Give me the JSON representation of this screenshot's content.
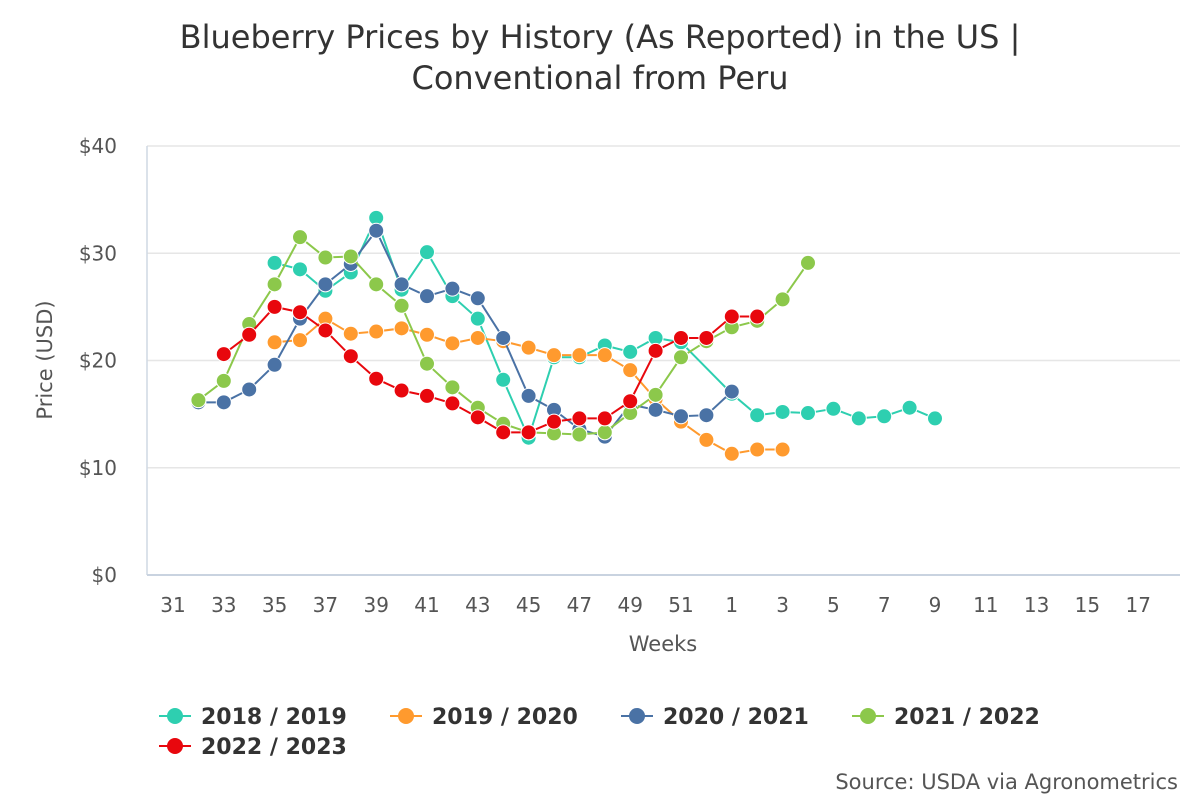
{
  "chart_data": {
    "type": "line",
    "title_lines": [
      "Blueberry Prices by History (As Reported) in the US |",
      "Conventional from Peru"
    ],
    "xlabel": "Weeks",
    "ylabel": "Price (USD)",
    "ylim": [
      0,
      40
    ],
    "yticks": [
      0,
      10,
      20,
      30,
      40
    ],
    "ytick_labels": [
      "$0",
      "$10",
      "$20",
      "$30",
      "$40"
    ],
    "x_positions": [
      "31",
      "32",
      "33",
      "34",
      "35",
      "36",
      "37",
      "38",
      "39",
      "40",
      "41",
      "42",
      "43",
      "44",
      "45",
      "46",
      "47",
      "48",
      "49",
      "50",
      "51",
      "52",
      "1",
      "2",
      "3",
      "4",
      "5",
      "6",
      "7",
      "8",
      "9",
      "10",
      "11",
      "12",
      "13",
      "14",
      "15",
      "16",
      "17"
    ],
    "xtick_labels": [
      "31",
      "33",
      "35",
      "37",
      "39",
      "41",
      "43",
      "45",
      "47",
      "49",
      "51",
      "1",
      "3",
      "5",
      "7",
      "9",
      "11",
      "13",
      "15",
      "17"
    ],
    "grid": true,
    "legend_position": "bottom-left",
    "source": "Source: USDA via Agronometrics",
    "series": [
      {
        "name": "2018 / 2019",
        "color": "#2ecfb0",
        "points": [
          [
            "35",
            29.1
          ],
          [
            "36",
            28.5
          ],
          [
            "37",
            26.5
          ],
          [
            "38",
            28.2
          ],
          [
            "39",
            33.3
          ],
          [
            "40",
            26.6
          ],
          [
            "41",
            30.1
          ],
          [
            "42",
            26.0
          ],
          [
            "43",
            23.9
          ],
          [
            "44",
            18.2
          ],
          [
            "45",
            12.8
          ],
          [
            "46",
            20.3
          ],
          [
            "47",
            20.3
          ],
          [
            "48",
            21.4
          ],
          [
            "49",
            20.8
          ],
          [
            "50",
            22.1
          ],
          [
            "51",
            21.7
          ],
          [
            "1",
            16.9
          ],
          [
            "2",
            14.9
          ],
          [
            "3",
            15.2
          ],
          [
            "4",
            15.1
          ],
          [
            "5",
            15.5
          ],
          [
            "6",
            14.6
          ],
          [
            "7",
            14.8
          ],
          [
            "8",
            15.6
          ],
          [
            "9",
            14.6
          ]
        ]
      },
      {
        "name": "2019 / 2020",
        "color": "#ff9a2e",
        "points": [
          [
            "35",
            21.7
          ],
          [
            "36",
            21.9
          ],
          [
            "37",
            23.9
          ],
          [
            "38",
            22.5
          ],
          [
            "39",
            22.7
          ],
          [
            "40",
            23.0
          ],
          [
            "41",
            22.4
          ],
          [
            "42",
            21.6
          ],
          [
            "43",
            22.1
          ],
          [
            "44",
            21.8
          ],
          [
            "45",
            21.2
          ],
          [
            "46",
            20.5
          ],
          [
            "47",
            20.5
          ],
          [
            "48",
            20.5
          ],
          [
            "49",
            19.1
          ],
          [
            "50",
            16.4
          ],
          [
            "51",
            14.3
          ],
          [
            "52",
            12.6
          ],
          [
            "1",
            11.3
          ],
          [
            "2",
            11.7
          ],
          [
            "3",
            11.7
          ]
        ]
      },
      {
        "name": "2020 / 2021",
        "color": "#4a72a5",
        "points": [
          [
            "32",
            16.1
          ],
          [
            "33",
            16.1
          ],
          [
            "34",
            17.3
          ],
          [
            "35",
            19.6
          ],
          [
            "36",
            23.9
          ],
          [
            "37",
            27.1
          ],
          [
            "38",
            29.0
          ],
          [
            "39",
            32.1
          ],
          [
            "40",
            27.1
          ],
          [
            "41",
            26.0
          ],
          [
            "42",
            26.7
          ],
          [
            "43",
            25.8
          ],
          [
            "44",
            22.1
          ],
          [
            "45",
            16.7
          ],
          [
            "46",
            15.4
          ],
          [
            "47",
            13.6
          ],
          [
            "48",
            12.9
          ],
          [
            "49",
            15.9
          ],
          [
            "50",
            15.4
          ],
          [
            "51",
            14.8
          ],
          [
            "52",
            14.9
          ],
          [
            "1",
            17.1
          ]
        ]
      },
      {
        "name": "2021 / 2022",
        "color": "#8cc84b",
        "points": [
          [
            "32",
            16.3
          ],
          [
            "33",
            18.1
          ],
          [
            "34",
            23.4
          ],
          [
            "35",
            27.1
          ],
          [
            "36",
            31.5
          ],
          [
            "37",
            29.6
          ],
          [
            "38",
            29.7
          ],
          [
            "39",
            27.1
          ],
          [
            "40",
            25.1
          ],
          [
            "41",
            19.7
          ],
          [
            "42",
            17.5
          ],
          [
            "43",
            15.6
          ],
          [
            "44",
            14.1
          ],
          [
            "45",
            13.3
          ],
          [
            "46",
            13.2
          ],
          [
            "47",
            13.1
          ],
          [
            "48",
            13.3
          ],
          [
            "49",
            15.1
          ],
          [
            "50",
            16.8
          ],
          [
            "51",
            20.3
          ],
          [
            "52",
            21.8
          ],
          [
            "1",
            23.1
          ],
          [
            "2",
            23.7
          ],
          [
            "3",
            25.7
          ],
          [
            "4",
            29.1
          ]
        ]
      },
      {
        "name": "2022 / 2023",
        "color": "#e8070d",
        "points": [
          [
            "33",
            20.6
          ],
          [
            "34",
            22.4
          ],
          [
            "35",
            25.0
          ],
          [
            "36",
            24.5
          ],
          [
            "37",
            22.8
          ],
          [
            "38",
            20.4
          ],
          [
            "39",
            18.3
          ],
          [
            "40",
            17.2
          ],
          [
            "41",
            16.7
          ],
          [
            "42",
            16.0
          ],
          [
            "43",
            14.7
          ],
          [
            "44",
            13.3
          ],
          [
            "45",
            13.3
          ],
          [
            "46",
            14.3
          ],
          [
            "47",
            14.6
          ],
          [
            "48",
            14.6
          ],
          [
            "49",
            16.2
          ],
          [
            "50",
            20.9
          ],
          [
            "51",
            22.1
          ],
          [
            "52",
            22.1
          ],
          [
            "1",
            24.1
          ],
          [
            "2",
            24.1
          ]
        ]
      }
    ]
  }
}
